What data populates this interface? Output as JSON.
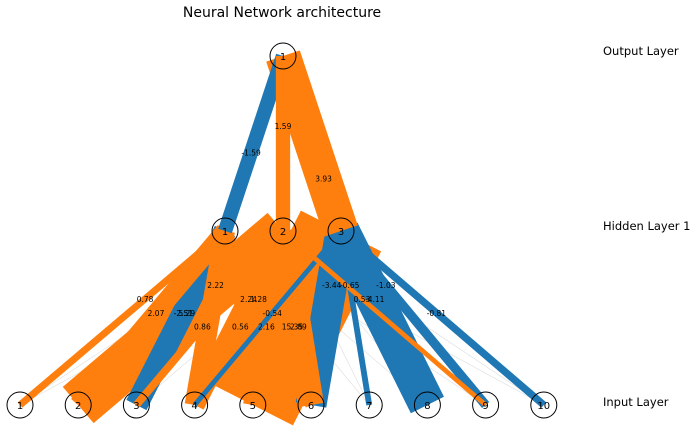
{
  "title": "Neural Network architecture",
  "layers": [
    {
      "name": "Input Layer",
      "nodes": [
        "1",
        "2",
        "3",
        "4",
        "5",
        "6",
        "7",
        "8",
        "9",
        "10"
      ]
    },
    {
      "name": "Hidden Layer 1",
      "nodes": [
        "1",
        "2",
        "3"
      ]
    },
    {
      "name": "Output Layer",
      "nodes": [
        "1"
      ]
    }
  ],
  "colors": {
    "positive": "#ff7f0e",
    "negative": "#1f77b4",
    "edge_light": "#dddddd"
  },
  "weights": {
    "input_to_hidden": [
      {
        "from": "1",
        "to": "1",
        "value": "0.78"
      },
      {
        "from": "2",
        "to": "1",
        "value": "2.07"
      },
      {
        "from": "2",
        "to": "2",
        "value": "5.29"
      },
      {
        "from": "3",
        "to": "1",
        "value": "-2.51"
      },
      {
        "from": "3",
        "to": "2",
        "value": "0.86"
      },
      {
        "from": "4",
        "to": "1",
        "value": "2.22"
      },
      {
        "from": "4",
        "to": "2",
        "value": "2.24"
      },
      {
        "from": "4",
        "to": "3",
        "value": "-0.54"
      },
      {
        "from": "5",
        "to": "1",
        "value": "0.56"
      },
      {
        "from": "5",
        "to": "2",
        "value": "2.16"
      },
      {
        "from": "5",
        "to": "3",
        "value": "15.35"
      },
      {
        "from": "6",
        "to": "1",
        "value": "1.28"
      },
      {
        "from": "6",
        "to": "2",
        "value": "2.89"
      },
      {
        "from": "6",
        "to": "3",
        "value": "-3.44"
      },
      {
        "from": "7",
        "to": "3",
        "value": "-0.65"
      },
      {
        "from": "8",
        "to": "3",
        "value": "-4.11"
      },
      {
        "from": "9",
        "to": "2",
        "value": "0.53"
      },
      {
        "from": "9",
        "to": "3",
        "value": "-1.03"
      },
      {
        "from": "10",
        "to": "3",
        "value": "-0.81"
      }
    ],
    "hidden_to_output": [
      {
        "from": "1",
        "to": "1",
        "value": "-1.59"
      },
      {
        "from": "2",
        "to": "1",
        "value": "1.59"
      },
      {
        "from": "3",
        "to": "1",
        "value": "3.93"
      }
    ]
  }
}
